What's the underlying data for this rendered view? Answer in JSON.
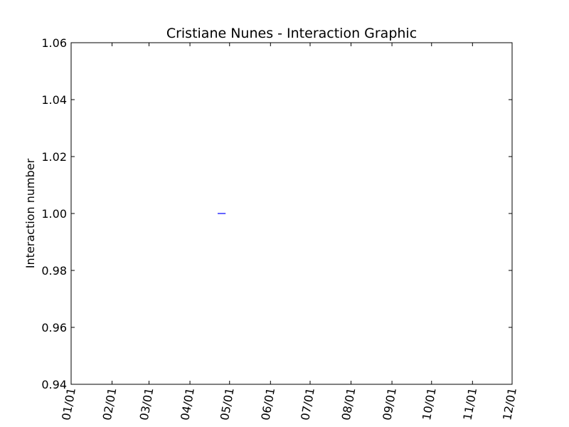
{
  "chart_data": {
    "type": "line",
    "title": "Cristiane Nunes - Interaction Graphic",
    "xlabel": "",
    "ylabel": "Interaction number",
    "x_tick_labels": [
      "01/01",
      "02/01",
      "03/01",
      "04/01",
      "05/01",
      "06/01",
      "07/01",
      "08/01",
      "09/01",
      "10/01",
      "11/01",
      "12/01"
    ],
    "y_tick_labels": [
      "0.94",
      "0.96",
      "0.98",
      "1.00",
      "1.02",
      "1.04",
      "1.06"
    ],
    "y_ticks": [
      0.94,
      0.96,
      0.98,
      1.0,
      1.02,
      1.04,
      1.06
    ],
    "ylim": [
      0.94,
      1.06
    ],
    "x_ticks": [
      "01/01",
      "02/01",
      "03/01",
      "04/01",
      "05/01",
      "06/01",
      "07/01",
      "08/01",
      "09/01",
      "10/01",
      "11/01",
      "12/01"
    ],
    "xlim": [
      "01/01",
      "12/01"
    ],
    "series": [
      {
        "color": "#0000ff",
        "x": [
          "04/22",
          "04/28"
        ],
        "y": [
          1.0,
          1.0
        ]
      }
    ],
    "grid": false
  }
}
